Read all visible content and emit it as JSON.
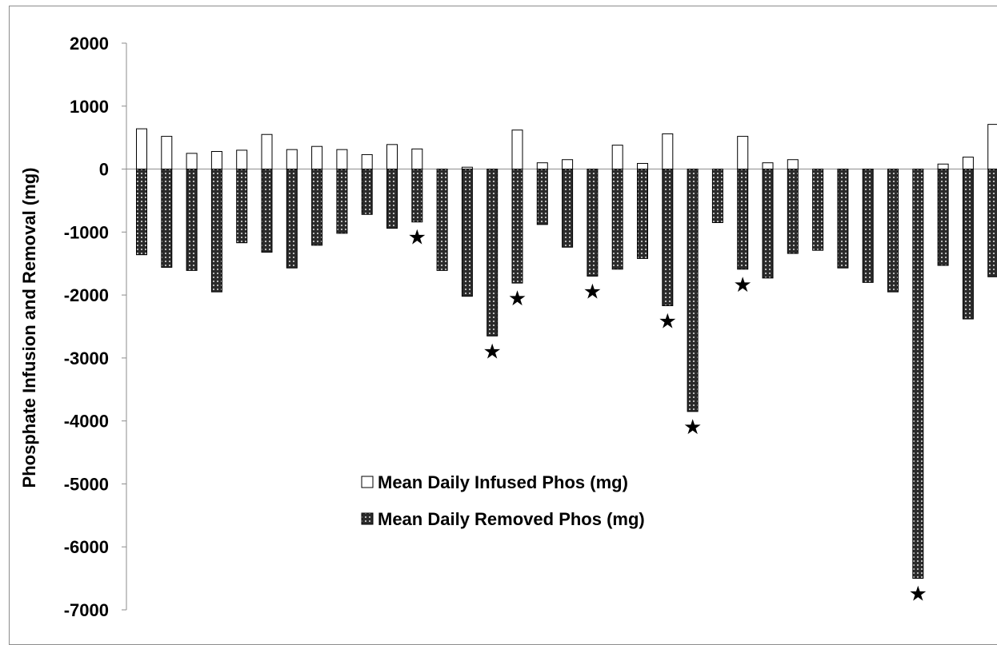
{
  "chart_data": {
    "type": "bar",
    "title": "",
    "xlabel": "",
    "ylabel": "Phosphate Infusion and  Removal (mg)",
    "ylim": [
      -7000,
      2000
    ],
    "yticks": [
      2000,
      1000,
      0,
      -1000,
      -2000,
      -3000,
      -4000,
      -5000,
      -6000,
      -7000
    ],
    "grid": false,
    "legend_position": "center-bottom",
    "marker_symbol": "★",
    "series": [
      {
        "name": "Mean Daily Infused Phos (mg)",
        "color": "#ffffff",
        "values": [
          640,
          520,
          250,
          280,
          300,
          550,
          310,
          360,
          310,
          230,
          390,
          320,
          0,
          30,
          0,
          620,
          100,
          150,
          0,
          380,
          90,
          560,
          0,
          0,
          520,
          100,
          150,
          0,
          0,
          0,
          0,
          0,
          80,
          190,
          710
        ]
      },
      {
        "name": "Mean Daily Removed Phos (mg)",
        "pattern": "dark-dotted",
        "values": [
          -1360,
          -1560,
          -1610,
          -1950,
          -1170,
          -1320,
          -1570,
          -1210,
          -1020,
          -720,
          -940,
          -840,
          -1610,
          -2020,
          -2650,
          -1810,
          -880,
          -1240,
          -1700,
          -1590,
          -1420,
          -2170,
          -3850,
          -850,
          -1590,
          -1730,
          -1340,
          -1290,
          -1570,
          -1800,
          -1950,
          -6500,
          -1530,
          -2380,
          -1710
        ]
      }
    ],
    "starred_bars": [
      11,
      14,
      15,
      18,
      21,
      22,
      24,
      31
    ]
  }
}
